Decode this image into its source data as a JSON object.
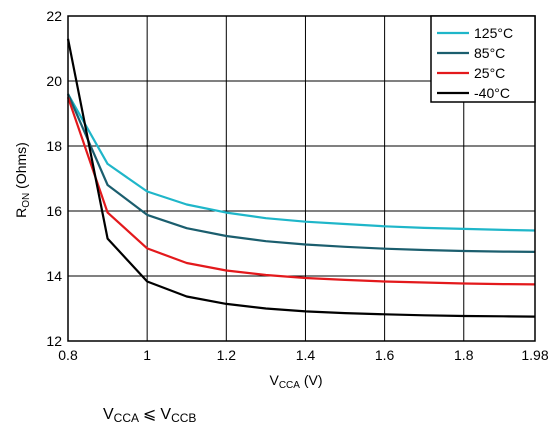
{
  "chart_data": {
    "type": "line",
    "xlabel": {
      "main": "V",
      "sub": "CCA",
      "unit": " (V)"
    },
    "ylabel": {
      "main": "R",
      "sub": "ON",
      "unit": " (Ohms)"
    },
    "xlim": [
      0.8,
      1.98
    ],
    "ylim": [
      12,
      22
    ],
    "xticks": [
      0.8,
      1.0,
      1.2,
      1.4,
      1.6,
      1.8,
      1.98
    ],
    "xtick_labels": [
      "0.8",
      "1",
      "1.2",
      "1.4",
      "1.6",
      "1.8",
      "1.98"
    ],
    "yticks": [
      12,
      14,
      16,
      18,
      20,
      22
    ],
    "ytick_labels": [
      "12",
      "14",
      "16",
      "18",
      "20",
      "22"
    ],
    "grid": true,
    "legend_position": "top-right",
    "x": [
      0.8,
      0.9,
      1.0,
      1.1,
      1.2,
      1.3,
      1.4,
      1.5,
      1.6,
      1.7,
      1.8,
      1.9,
      1.98
    ],
    "series": [
      {
        "name": "125°C",
        "color": "#1fb6c9",
        "values": [
          19.6,
          17.45,
          16.6,
          16.2,
          15.95,
          15.78,
          15.67,
          15.6,
          15.53,
          15.48,
          15.45,
          15.42,
          15.4
        ]
      },
      {
        "name": "85°C",
        "color": "#1b5e6e",
        "values": [
          19.6,
          16.8,
          15.88,
          15.47,
          15.23,
          15.07,
          14.97,
          14.9,
          14.84,
          14.8,
          14.77,
          14.75,
          14.74
        ]
      },
      {
        "name": "25°C",
        "color": "#e3191c",
        "values": [
          19.5,
          15.95,
          14.85,
          14.4,
          14.17,
          14.03,
          13.94,
          13.88,
          13.83,
          13.8,
          13.77,
          13.75,
          13.74
        ]
      },
      {
        "name": "-40°C",
        "color": "#000000",
        "values": [
          21.3,
          15.15,
          13.83,
          13.37,
          13.14,
          13.0,
          12.91,
          12.86,
          12.82,
          12.79,
          12.77,
          12.76,
          12.75
        ]
      }
    ],
    "annotation": {
      "a": "V",
      "a_sub": "CCA",
      "rel": "⩽",
      "b": "V",
      "b_sub": "CCB"
    }
  }
}
